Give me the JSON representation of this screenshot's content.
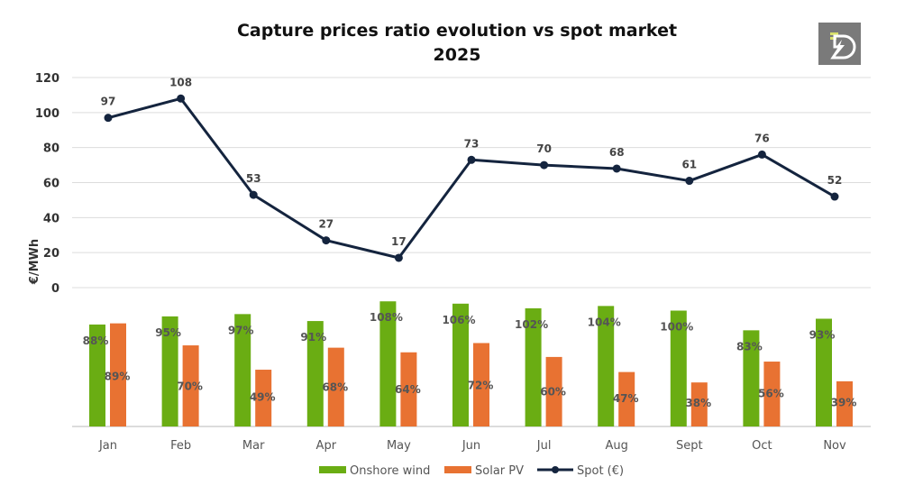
{
  "chart_data": {
    "type": "bar+line",
    "title": "Capture prices ratio evolution vs spot market",
    "subtitle": "2025",
    "ylabel": "€/MWh",
    "ylim": [
      0,
      120
    ],
    "yticks": [
      "0",
      "20",
      "40",
      "60",
      "80",
      "100",
      "120"
    ],
    "categories": [
      "Jan",
      "Feb",
      "Mar",
      "Apr",
      "May",
      "Jun",
      "Jul",
      "Aug",
      "Sept",
      "Oct",
      "Nov"
    ],
    "series": [
      {
        "name": "Onshore wind",
        "type": "bar",
        "color": "#6aad13",
        "values": [
          88,
          95,
          97,
          91,
          108,
          106,
          102,
          104,
          100,
          83,
          93
        ],
        "labels": [
          "88%",
          "95%",
          "97%",
          "91%",
          "108%",
          "106%",
          "102%",
          "104%",
          "100%",
          "83%",
          "93%"
        ]
      },
      {
        "name": "Solar PV",
        "type": "bar",
        "color": "#e87232",
        "values": [
          89,
          70,
          49,
          68,
          64,
          72,
          60,
          47,
          38,
          56,
          39
        ],
        "labels": [
          "89%",
          "70%",
          "49%",
          "68%",
          "64%",
          "72%",
          "60%",
          "47%",
          "38%",
          "56%",
          "39%"
        ]
      },
      {
        "name": "Spot (€)",
        "type": "line",
        "color": "#14243e",
        "values": [
          97,
          108,
          53,
          27,
          17,
          73,
          70,
          68,
          61,
          76,
          52
        ],
        "labels": [
          "97",
          "108",
          "53",
          "27",
          "17",
          "73",
          "70",
          "68",
          "61",
          "76",
          "52"
        ]
      }
    ],
    "grid": true,
    "legend": "bottom-center"
  },
  "logo": {
    "text": "D",
    "bg": "#7a7a7a"
  }
}
